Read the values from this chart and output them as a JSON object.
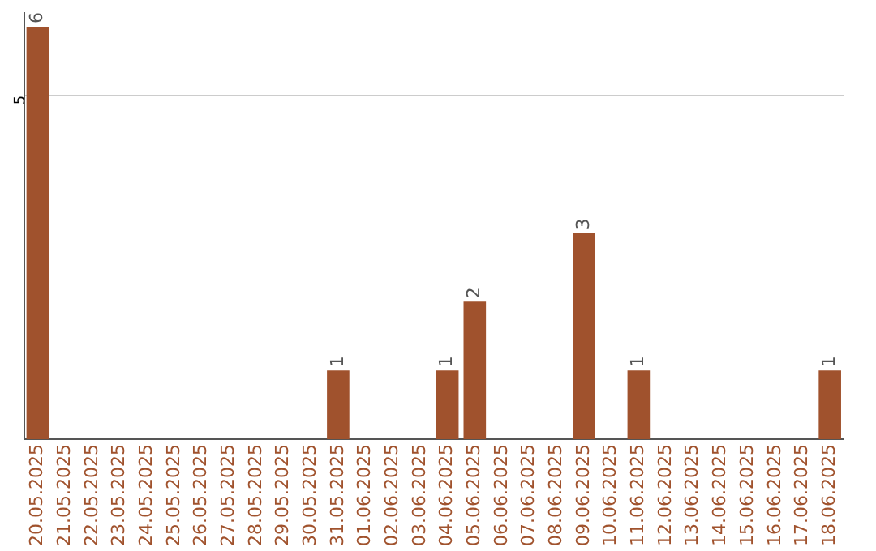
{
  "chart_data": {
    "type": "bar",
    "categories": [
      "20.05.2025",
      "21.05.2025",
      "22.05.2025",
      "23.05.2025",
      "24.05.2025",
      "25.05.2025",
      "26.05.2025",
      "27.05.2025",
      "28.05.2025",
      "29.05.2025",
      "30.05.2025",
      "31.05.2025",
      "01.06.2025",
      "02.06.2025",
      "03.06.2025",
      "04.06.2025",
      "05.06.2025",
      "06.06.2025",
      "07.06.2025",
      "08.06.2025",
      "09.06.2025",
      "10.06.2025",
      "11.06.2025",
      "12.06.2025",
      "13.06.2025",
      "14.06.2025",
      "15.06.2025",
      "16.06.2025",
      "17.06.2025",
      "18.06.2025"
    ],
    "values": [
      6,
      0,
      0,
      0,
      0,
      0,
      0,
      0,
      0,
      0,
      0,
      1,
      0,
      0,
      0,
      1,
      2,
      0,
      0,
      0,
      3,
      0,
      1,
      0,
      0,
      0,
      0,
      0,
      0,
      1
    ],
    "value_labels": [
      "6",
      null,
      null,
      null,
      null,
      null,
      null,
      null,
      null,
      null,
      null,
      "1",
      null,
      null,
      null,
      "1",
      "2",
      null,
      null,
      null,
      "3",
      null,
      "1",
      null,
      null,
      null,
      null,
      null,
      null,
      "1"
    ],
    "color": "#a0522d",
    "ylim": [
      0,
      6.2
    ],
    "yticks": [
      5
    ],
    "grid": "y",
    "legend": false
  }
}
